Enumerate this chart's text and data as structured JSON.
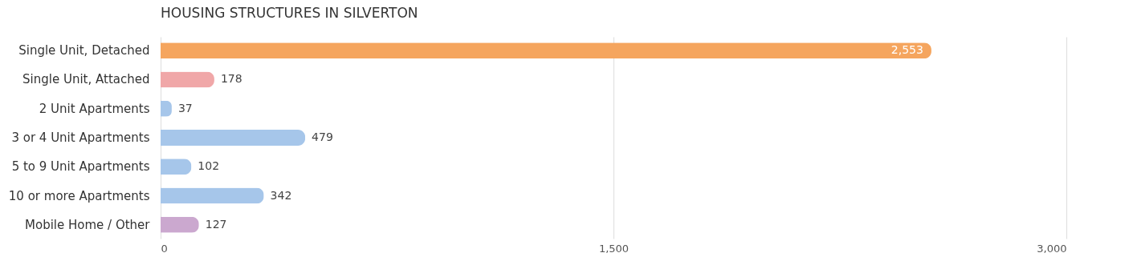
{
  "chart_data": {
    "type": "bar",
    "orientation": "horizontal",
    "title": "HOUSING STRUCTURES IN SILVERTON",
    "categories": [
      "Single Unit, Detached",
      "Single Unit, Attached",
      "2 Unit Apartments",
      "3 or 4 Unit Apartments",
      "5 to 9 Unit Apartments",
      "10 or more Apartments",
      "Mobile Home / Other"
    ],
    "values": [
      2553,
      178,
      37,
      479,
      102,
      342,
      127
    ],
    "value_labels": [
      "2,553",
      "178",
      "37",
      "479",
      "102",
      "342",
      "127"
    ],
    "colors": [
      "#f5a55e",
      "#f0a7a8",
      "#a6c6ea",
      "#a6c6ea",
      "#a6c6ea",
      "#a6c6ea",
      "#cba8cf"
    ],
    "xlim": [
      0,
      3000
    ],
    "xticks": [
      0,
      {
        "value": 1500,
        "label": "1,500"
      },
      {
        "value": 3000,
        "label": "3,000"
      }
    ],
    "grid": "x"
  }
}
